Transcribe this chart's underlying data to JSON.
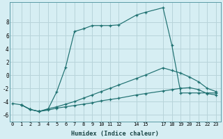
{
  "xlabel": "Humidex (Indice chaleur)",
  "background_color": "#d6eef3",
  "grid_color": "#b8d4da",
  "line_color": "#1e7070",
  "series": [
    {
      "x": [
        0,
        1,
        2,
        3,
        4,
        5,
        6,
        7,
        8,
        9,
        10,
        11,
        12,
        14,
        15,
        17,
        18,
        19,
        20,
        21,
        22,
        23
      ],
      "y": [
        -4.3,
        -4.5,
        -5.2,
        -5.5,
        -5.2,
        -2.5,
        1.2,
        6.6,
        7.0,
        7.5,
        7.5,
        7.5,
        7.6,
        9.1,
        9.5,
        10.2,
        4.5,
        -2.7,
        -2.7,
        -2.7,
        -2.7,
        -2.7
      ]
    },
    {
      "x": [
        1,
        2,
        3,
        4,
        5,
        6,
        7,
        8,
        9,
        10,
        11,
        12,
        14,
        15,
        17,
        18,
        19,
        20,
        21,
        22,
        23
      ],
      "y": [
        -4.5,
        -5.2,
        -5.5,
        -5.1,
        -4.8,
        -4.4,
        -4.0,
        -3.5,
        -3.0,
        -2.5,
        -2.0,
        -1.5,
        -0.5,
        0.0,
        1.1,
        0.7,
        0.3,
        -0.3,
        -1.0,
        -2.0,
        -2.5
      ]
    },
    {
      "x": [
        1,
        2,
        3,
        4,
        5,
        6,
        7,
        8,
        9,
        10,
        11,
        12,
        14,
        15,
        17,
        18,
        19,
        20,
        21,
        22,
        23
      ],
      "y": [
        -4.5,
        -5.2,
        -5.5,
        -5.3,
        -5.0,
        -4.8,
        -4.6,
        -4.4,
        -4.2,
        -3.9,
        -3.7,
        -3.5,
        -3.0,
        -2.8,
        -2.4,
        -2.2,
        -2.0,
        -1.9,
        -2.2,
        -2.8,
        -3.0
      ]
    }
  ],
  "xlim": [
    -0.3,
    23.5
  ],
  "ylim": [
    -7,
    11
  ],
  "yticks": [
    -6,
    -4,
    -2,
    0,
    2,
    4,
    6,
    8
  ],
  "xticks": [
    0,
    1,
    2,
    3,
    4,
    5,
    6,
    7,
    8,
    9,
    10,
    11,
    12,
    14,
    15,
    17,
    18,
    19,
    20,
    21,
    22,
    23
  ]
}
